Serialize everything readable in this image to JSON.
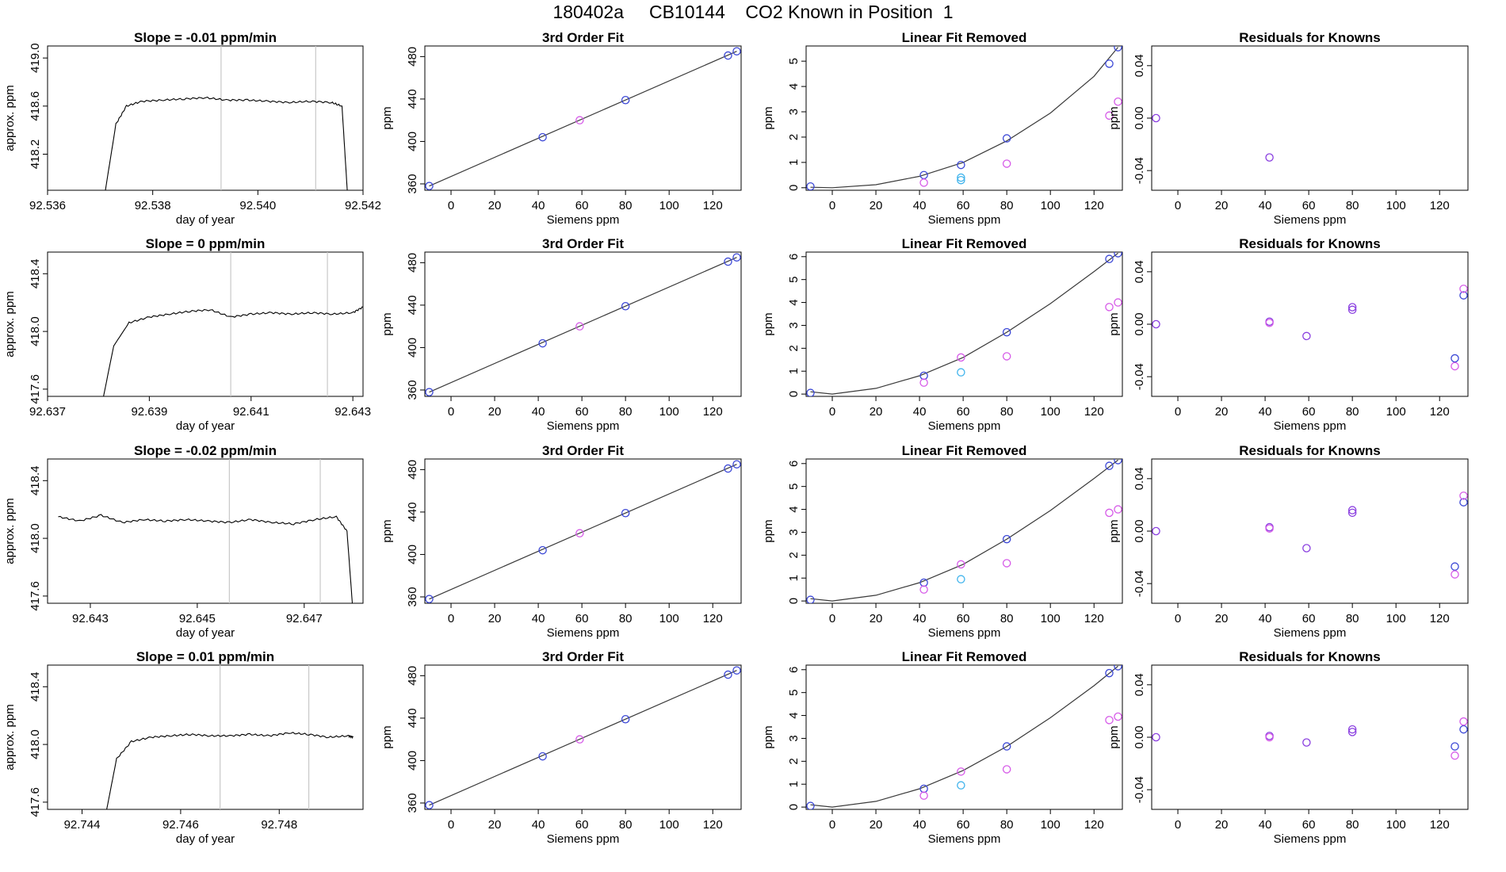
{
  "page_title": "180402a     CB10144    CO2 Known in Position  1",
  "colors": {
    "trace": "#000000",
    "fit_line": "#3a3a3a",
    "marker_blue": "#3b47d6",
    "marker_magenta": "#d65ae8",
    "marker_cyan": "#3fb3ec",
    "marker_purple": "#8a3fe0",
    "gate_line": "#c8c8c8"
  },
  "chart_data": [
    {
      "type": "line",
      "title": "Slope =  -0.01  ppm/min",
      "xlabel": "day of year",
      "ylabel": "approx. ppm",
      "xlim": [
        92.536,
        92.542
      ],
      "ylim": [
        417.9,
        419.1
      ],
      "xticks": [
        "92.536",
        "92.538",
        "92.540",
        "92.542"
      ],
      "yticks": [
        "418.2",
        "418.6",
        "419.0"
      ],
      "gate_lines": [
        92.5393,
        92.5411
      ],
      "x": [
        92.5371,
        92.5373,
        92.5375,
        92.5378,
        92.5382,
        92.5386,
        92.539,
        92.5394,
        92.5398,
        92.5402,
        92.5406,
        92.541,
        92.5414,
        92.5416,
        92.5417
      ],
      "y": [
        417.9,
        418.45,
        418.6,
        418.64,
        418.65,
        418.66,
        418.67,
        418.65,
        418.65,
        418.64,
        418.63,
        418.64,
        418.63,
        418.6,
        417.9
      ]
    },
    {
      "type": "scatter",
      "title": "3rd Order Fit",
      "xlabel": "Siemens ppm",
      "ylabel": "ppm",
      "xlim": [
        -12,
        133
      ],
      "ylim": [
        354,
        490
      ],
      "xticks": [
        "0",
        "20",
        "40",
        "60",
        "80",
        "100",
        "120"
      ],
      "yticks": [
        "360",
        "400",
        "440",
        "480"
      ],
      "series": [
        {
          "color": "marker_blue",
          "x": [
            -10,
            42,
            80,
            127,
            131
          ],
          "y": [
            358,
            404,
            439,
            481,
            485
          ]
        },
        {
          "color": "marker_magenta",
          "x": [
            59
          ],
          "y": [
            420
          ]
        }
      ],
      "fit_line": {
        "x": [
          -10,
          131
        ],
        "y": [
          358,
          485
        ]
      }
    },
    {
      "type": "scatter",
      "title": "Linear Fit Removed",
      "xlabel": "Siemens ppm",
      "ylabel": "ppm",
      "xlim": [
        -12,
        133
      ],
      "ylim": [
        -0.1,
        5.6
      ],
      "xticks": [
        "0",
        "20",
        "40",
        "60",
        "80",
        "100",
        "120"
      ],
      "yticks": [
        "0",
        "1",
        "2",
        "3",
        "4",
        "5"
      ],
      "series": [
        {
          "color": "marker_blue",
          "x": [
            -10,
            42,
            59,
            80,
            127,
            131
          ],
          "y": [
            0.05,
            0.5,
            0.9,
            1.95,
            4.9,
            5.55
          ]
        },
        {
          "color": "marker_magenta",
          "x": [
            42,
            80,
            127,
            131
          ],
          "y": [
            0.2,
            0.95,
            2.85,
            3.4
          ]
        },
        {
          "color": "marker_cyan",
          "x": [
            59,
            59
          ],
          "y": [
            0.3,
            0.4
          ]
        }
      ],
      "fit_curve": {
        "x": [
          -10,
          0,
          20,
          40,
          60,
          80,
          100,
          120,
          131
        ],
        "y": [
          0.02,
          0.0,
          0.12,
          0.45,
          1.0,
          1.85,
          2.95,
          4.4,
          5.55
        ]
      }
    },
    {
      "type": "scatter",
      "title": "Residuals for Knowns",
      "xlabel": "Siemens ppm",
      "ylabel": "ppm",
      "xlim": [
        -12,
        133
      ],
      "ylim": [
        -0.055,
        0.055
      ],
      "xticks": [
        "0",
        "20",
        "40",
        "60",
        "80",
        "100",
        "120"
      ],
      "yticks": [
        "-0.04",
        "0.00",
        "0.04"
      ],
      "series": [
        {
          "color": "marker_purple",
          "x": [
            -10,
            42
          ],
          "y": [
            0.0,
            -0.03
          ]
        }
      ]
    },
    {
      "type": "line",
      "title": "Slope =  0  ppm/min",
      "xlabel": "day of year",
      "ylabel": "approx. ppm",
      "xlim": [
        92.637,
        92.6432
      ],
      "ylim": [
        417.55,
        418.55
      ],
      "xticks": [
        "92.637",
        "92.639",
        "92.641",
        "92.643"
      ],
      "yticks": [
        "417.6",
        "418.0",
        "418.4"
      ],
      "gate_lines": [
        92.6406,
        92.6425
      ],
      "x": [
        92.6381,
        92.6383,
        92.6386,
        92.639,
        92.6394,
        92.6398,
        92.6402,
        92.6406,
        92.641,
        92.6414,
        92.6418,
        92.6422,
        92.6426,
        92.643,
        92.6432
      ],
      "y": [
        417.55,
        417.9,
        418.06,
        418.1,
        418.12,
        418.14,
        418.15,
        418.1,
        418.12,
        418.13,
        418.12,
        418.13,
        418.12,
        418.13,
        418.17
      ]
    },
    {
      "type": "scatter",
      "title": "3rd Order Fit",
      "xlabel": "Siemens ppm",
      "ylabel": "ppm",
      "xlim": [
        -12,
        133
      ],
      "ylim": [
        354,
        490
      ],
      "xticks": [
        "0",
        "20",
        "40",
        "60",
        "80",
        "100",
        "120"
      ],
      "yticks": [
        "360",
        "400",
        "440",
        "480"
      ],
      "series": [
        {
          "color": "marker_blue",
          "x": [
            -10,
            42,
            80,
            127,
            131
          ],
          "y": [
            358,
            404,
            439,
            481,
            485
          ]
        },
        {
          "color": "marker_magenta",
          "x": [
            59
          ],
          "y": [
            420
          ]
        }
      ],
      "fit_line": {
        "x": [
          -10,
          131
        ],
        "y": [
          358,
          485
        ]
      }
    },
    {
      "type": "scatter",
      "title": "Linear Fit Removed",
      "xlabel": "Siemens ppm",
      "ylabel": "ppm",
      "xlim": [
        -12,
        133
      ],
      "ylim": [
        -0.1,
        6.2
      ],
      "xticks": [
        "0",
        "20",
        "40",
        "60",
        "80",
        "100",
        "120"
      ],
      "yticks": [
        "0",
        "1",
        "2",
        "3",
        "4",
        "5",
        "6"
      ],
      "series": [
        {
          "color": "marker_blue",
          "x": [
            -10,
            42,
            80,
            127,
            131
          ],
          "y": [
            0.05,
            0.8,
            2.7,
            5.9,
            6.15
          ]
        },
        {
          "color": "marker_magenta",
          "x": [
            42,
            59,
            80,
            127,
            131
          ],
          "y": [
            0.5,
            1.6,
            1.65,
            3.8,
            4.0
          ]
        },
        {
          "color": "marker_cyan",
          "x": [
            59
          ],
          "y": [
            0.95
          ]
        }
      ],
      "fit_curve": {
        "x": [
          -10,
          0,
          20,
          40,
          60,
          80,
          100,
          120,
          131
        ],
        "y": [
          0.1,
          0.0,
          0.25,
          0.8,
          1.6,
          2.7,
          3.95,
          5.35,
          6.15
        ]
      }
    },
    {
      "type": "scatter",
      "title": "Residuals for Knowns",
      "xlabel": "Siemens ppm",
      "ylabel": "ppm",
      "xlim": [
        -12,
        133
      ],
      "ylim": [
        -0.055,
        0.055
      ],
      "xticks": [
        "0",
        "20",
        "40",
        "60",
        "80",
        "100",
        "120"
      ],
      "yticks": [
        "-0.04",
        "0.00",
        "0.04"
      ],
      "series": [
        {
          "color": "marker_purple",
          "x": [
            -10,
            42,
            59,
            80,
            80
          ],
          "y": [
            0.0,
            0.002,
            -0.009,
            0.011,
            0.013
          ]
        },
        {
          "color": "marker_blue",
          "x": [
            127,
            131
          ],
          "y": [
            -0.026,
            0.022
          ]
        },
        {
          "color": "marker_magenta",
          "x": [
            42,
            127,
            131
          ],
          "y": [
            0.001,
            -0.032,
            0.027
          ]
        }
      ]
    },
    {
      "type": "line",
      "title": "Slope =  -0.02  ppm/min",
      "xlabel": "day of year",
      "ylabel": "approx. ppm",
      "xlim": [
        92.6422,
        92.6481
      ],
      "ylim": [
        417.55,
        418.55
      ],
      "xticks": [
        "92.643",
        "92.645",
        "92.647"
      ],
      "yticks": [
        "417.6",
        "418.0",
        "418.4"
      ],
      "gate_lines": [
        92.6456,
        92.6473
      ],
      "x": [
        92.6424,
        92.6428,
        92.6432,
        92.6436,
        92.644,
        92.6444,
        92.6448,
        92.6452,
        92.6456,
        92.646,
        92.6464,
        92.6468,
        92.6472,
        92.6476,
        92.6478,
        92.6479
      ],
      "y": [
        418.15,
        418.12,
        418.16,
        418.11,
        418.13,
        418.12,
        418.13,
        418.12,
        418.11,
        418.13,
        418.11,
        418.1,
        418.13,
        418.15,
        418.05,
        417.55
      ]
    },
    {
      "type": "scatter",
      "title": "3rd Order Fit",
      "xlabel": "Siemens ppm",
      "ylabel": "ppm",
      "xlim": [
        -12,
        133
      ],
      "ylim": [
        354,
        490
      ],
      "xticks": [
        "0",
        "20",
        "40",
        "60",
        "80",
        "100",
        "120"
      ],
      "yticks": [
        "360",
        "400",
        "440",
        "480"
      ],
      "series": [
        {
          "color": "marker_blue",
          "x": [
            -10,
            42,
            80,
            127,
            131
          ],
          "y": [
            358,
            404,
            439,
            481,
            485
          ]
        },
        {
          "color": "marker_magenta",
          "x": [
            59
          ],
          "y": [
            420
          ]
        }
      ],
      "fit_line": {
        "x": [
          -10,
          131
        ],
        "y": [
          358,
          485
        ]
      }
    },
    {
      "type": "scatter",
      "title": "Linear Fit Removed",
      "xlabel": "Siemens ppm",
      "ylabel": "ppm",
      "xlim": [
        -12,
        133
      ],
      "ylim": [
        -0.1,
        6.2
      ],
      "xticks": [
        "0",
        "20",
        "40",
        "60",
        "80",
        "100",
        "120"
      ],
      "yticks": [
        "0",
        "1",
        "2",
        "3",
        "4",
        "5",
        "6"
      ],
      "series": [
        {
          "color": "marker_blue",
          "x": [
            -10,
            42,
            80,
            127,
            131
          ],
          "y": [
            0.05,
            0.8,
            2.7,
            5.9,
            6.15
          ]
        },
        {
          "color": "marker_magenta",
          "x": [
            42,
            59,
            80,
            127,
            131
          ],
          "y": [
            0.5,
            1.6,
            1.65,
            3.85,
            4.0
          ]
        },
        {
          "color": "marker_cyan",
          "x": [
            59
          ],
          "y": [
            0.95
          ]
        }
      ],
      "fit_curve": {
        "x": [
          -10,
          0,
          20,
          40,
          60,
          80,
          100,
          120,
          131
        ],
        "y": [
          0.1,
          0.0,
          0.25,
          0.8,
          1.6,
          2.7,
          3.95,
          5.35,
          6.15
        ]
      }
    },
    {
      "type": "scatter",
      "title": "Residuals for Knowns",
      "xlabel": "Siemens ppm",
      "ylabel": "ppm",
      "xlim": [
        -12,
        133
      ],
      "ylim": [
        -0.055,
        0.055
      ],
      "xticks": [
        "0",
        "20",
        "40",
        "60",
        "80",
        "100",
        "120"
      ],
      "yticks": [
        "-0.04",
        "0.00",
        "0.04"
      ],
      "series": [
        {
          "color": "marker_purple",
          "x": [
            -10,
            42,
            59,
            80,
            80
          ],
          "y": [
            0.0,
            0.003,
            -0.013,
            0.014,
            0.016
          ]
        },
        {
          "color": "marker_blue",
          "x": [
            127,
            131
          ],
          "y": [
            -0.027,
            0.022
          ]
        },
        {
          "color": "marker_magenta",
          "x": [
            42,
            127,
            131
          ],
          "y": [
            0.002,
            -0.033,
            0.027
          ]
        }
      ]
    },
    {
      "type": "line",
      "title": "Slope =  0.01  ppm/min",
      "xlabel": "day of year",
      "ylabel": "approx. ppm",
      "xlim": [
        92.7433,
        92.7497
      ],
      "ylim": [
        417.55,
        418.55
      ],
      "xticks": [
        "92.744",
        "92.746",
        "92.748"
      ],
      "yticks": [
        "417.6",
        "418.0",
        "418.4"
      ],
      "gate_lines": [
        92.7468,
        92.7486
      ],
      "x": [
        92.7445,
        92.7447,
        92.745,
        92.7454,
        92.7458,
        92.7462,
        92.7466,
        92.747,
        92.7474,
        92.7478,
        92.7482,
        92.7486,
        92.749,
        92.7494,
        92.7495
      ],
      "y": [
        417.55,
        417.9,
        418.02,
        418.05,
        418.06,
        418.07,
        418.06,
        418.06,
        418.07,
        418.06,
        418.08,
        418.07,
        418.05,
        418.06,
        418.05
      ]
    },
    {
      "type": "scatter",
      "title": "3rd Order Fit",
      "xlabel": "Siemens ppm",
      "ylabel": "ppm",
      "xlim": [
        -12,
        133
      ],
      "ylim": [
        354,
        490
      ],
      "xticks": [
        "0",
        "20",
        "40",
        "60",
        "80",
        "100",
        "120"
      ],
      "yticks": [
        "360",
        "400",
        "440",
        "480"
      ],
      "series": [
        {
          "color": "marker_blue",
          "x": [
            -10,
            42,
            80,
            127,
            131
          ],
          "y": [
            358,
            404,
            439,
            481,
            485
          ]
        },
        {
          "color": "marker_magenta",
          "x": [
            59
          ],
          "y": [
            420
          ]
        }
      ],
      "fit_line": {
        "x": [
          -10,
          131
        ],
        "y": [
          358,
          485
        ]
      }
    },
    {
      "type": "scatter",
      "title": "Linear Fit Removed",
      "xlabel": "Siemens ppm",
      "ylabel": "ppm",
      "xlim": [
        -12,
        133
      ],
      "ylim": [
        -0.1,
        6.2
      ],
      "xticks": [
        "0",
        "20",
        "40",
        "60",
        "80",
        "100",
        "120"
      ],
      "yticks": [
        "0",
        "1",
        "2",
        "3",
        "4",
        "5",
        "6"
      ],
      "series": [
        {
          "color": "marker_blue",
          "x": [
            -10,
            42,
            80,
            127,
            131
          ],
          "y": [
            0.05,
            0.8,
            2.65,
            5.85,
            6.15
          ]
        },
        {
          "color": "marker_magenta",
          "x": [
            42,
            59,
            80,
            127,
            131
          ],
          "y": [
            0.5,
            1.55,
            1.65,
            3.8,
            3.95
          ]
        },
        {
          "color": "marker_cyan",
          "x": [
            59
          ],
          "y": [
            0.95
          ]
        }
      ],
      "fit_curve": {
        "x": [
          -10,
          0,
          20,
          40,
          60,
          80,
          100,
          120,
          131
        ],
        "y": [
          0.1,
          0.0,
          0.25,
          0.8,
          1.6,
          2.65,
          3.9,
          5.3,
          6.15
        ]
      }
    },
    {
      "type": "scatter",
      "title": "Residuals for Knowns",
      "xlabel": "Siemens ppm",
      "ylabel": "ppm",
      "xlim": [
        -12,
        133
      ],
      "ylim": [
        -0.055,
        0.055
      ],
      "xticks": [
        "0",
        "20",
        "40",
        "60",
        "80",
        "100",
        "120"
      ],
      "yticks": [
        "-0.04",
        "0.00",
        "0.04"
      ],
      "series": [
        {
          "color": "marker_purple",
          "x": [
            -10,
            42,
            59,
            80,
            80
          ],
          "y": [
            0.0,
            0.001,
            -0.004,
            0.004,
            0.006
          ]
        },
        {
          "color": "marker_blue",
          "x": [
            127,
            131
          ],
          "y": [
            -0.007,
            0.006
          ]
        },
        {
          "color": "marker_magenta",
          "x": [
            42,
            127,
            131
          ],
          "y": [
            0.0,
            -0.014,
            0.012
          ]
        }
      ]
    }
  ]
}
